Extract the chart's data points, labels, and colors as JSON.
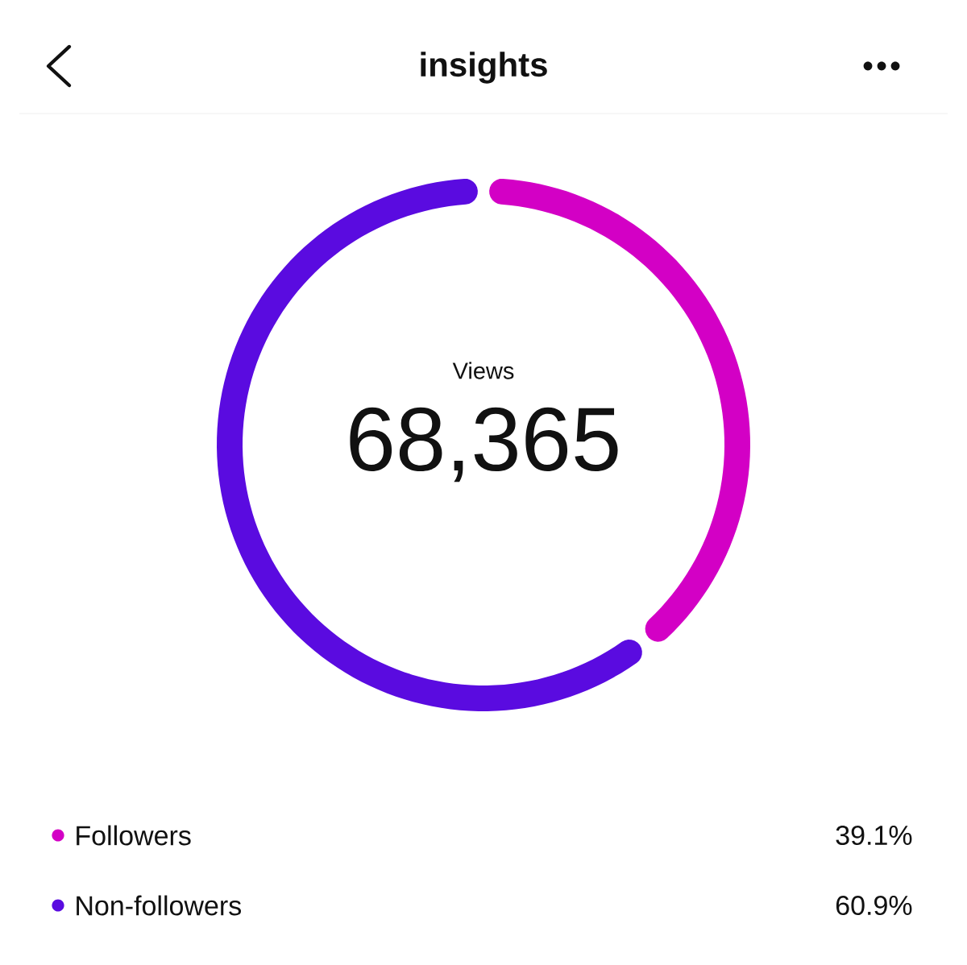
{
  "chart_data": {
    "type": "donut",
    "title": "insights",
    "categories": [
      "Followers",
      "Non-followers"
    ],
    "values": [
      39.1,
      60.9
    ],
    "colors": [
      "#d300c5",
      "#5a0be0"
    ],
    "value_labels": [
      "39.1%",
      "60.9%"
    ],
    "annotations": [
      "Views",
      "68,365"
    ],
    "legend": "bottom"
  }
}
